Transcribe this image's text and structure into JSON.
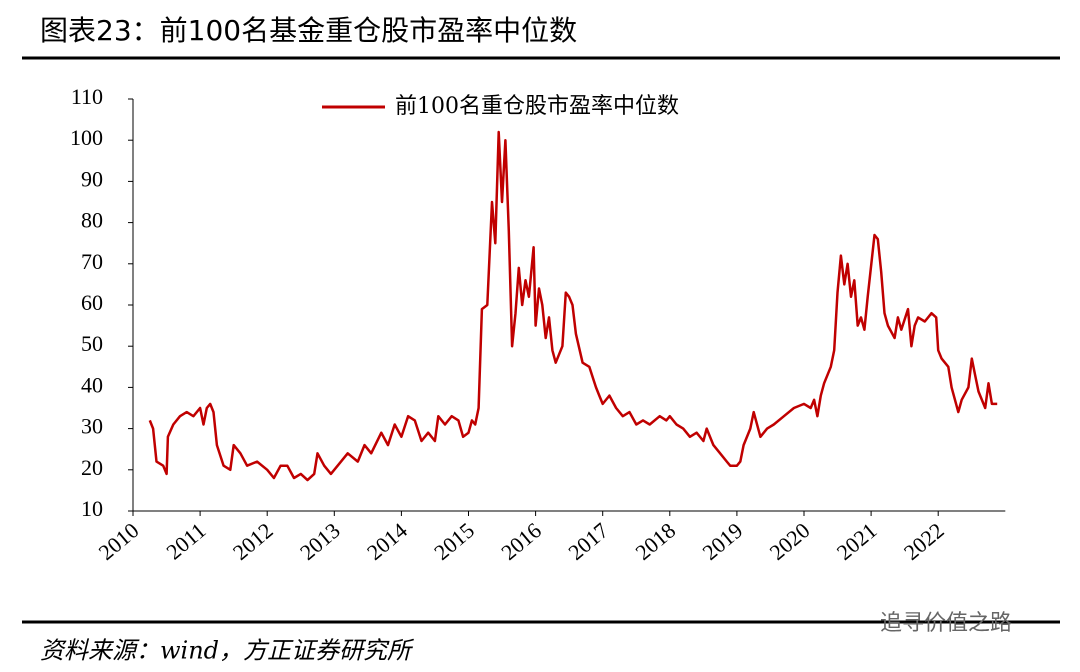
{
  "chart_data": {
    "type": "line",
    "title": "图表23：前100名基金重仓股市盈率中位数",
    "source": "资料来源：wind，方正证券研究所",
    "watermark": "追寻价值之路",
    "xlim": [
      2010,
      2023
    ],
    "xticks": [
      2010,
      2011,
      2012,
      2013,
      2014,
      2015,
      2016,
      2017,
      2018,
      2019,
      2020,
      2021,
      2022
    ],
    "ylim": [
      10,
      110
    ],
    "yticks": [
      10,
      20,
      30,
      40,
      50,
      60,
      70,
      80,
      90,
      100,
      110
    ],
    "grid": false,
    "legend": "top",
    "x": [
      2010.25,
      2010.3,
      2010.35,
      2010.45,
      2010.5,
      2010.52,
      2010.6,
      2010.7,
      2010.8,
      2010.9,
      2011.0,
      2011.05,
      2011.1,
      2011.15,
      2011.2,
      2011.25,
      2011.35,
      2011.45,
      2011.5,
      2011.6,
      2011.7,
      2011.85,
      2012.0,
      2012.1,
      2012.2,
      2012.3,
      2012.4,
      2012.5,
      2012.6,
      2012.7,
      2012.75,
      2012.85,
      2012.95,
      2013.1,
      2013.2,
      2013.35,
      2013.45,
      2013.55,
      2013.7,
      2013.8,
      2013.9,
      2014.0,
      2014.1,
      2014.2,
      2014.3,
      2014.4,
      2014.5,
      2014.55,
      2014.65,
      2014.75,
      2014.85,
      2014.92,
      2015.0,
      2015.05,
      2015.1,
      2015.15,
      2015.2,
      2015.28,
      2015.35,
      2015.4,
      2015.45,
      2015.5,
      2015.55,
      2015.6,
      2015.65,
      2015.7,
      2015.75,
      2015.8,
      2015.85,
      2015.9,
      2015.97,
      2016.0,
      2016.05,
      2016.1,
      2016.15,
      2016.2,
      2016.25,
      2016.3,
      2016.4,
      2016.45,
      2016.5,
      2016.55,
      2016.6,
      2016.7,
      2016.8,
      2016.9,
      2016.95,
      2017.0,
      2017.1,
      2017.2,
      2017.3,
      2017.4,
      2017.5,
      2017.6,
      2017.7,
      2017.85,
      2017.95,
      2018.0,
      2018.1,
      2018.2,
      2018.3,
      2018.4,
      2018.5,
      2018.55,
      2018.65,
      2018.75,
      2018.85,
      2018.9,
      2019.0,
      2019.05,
      2019.1,
      2019.2,
      2019.25,
      2019.35,
      2019.45,
      2019.55,
      2019.7,
      2019.85,
      2020.0,
      2020.1,
      2020.15,
      2020.2,
      2020.25,
      2020.3,
      2020.4,
      2020.45,
      2020.5,
      2020.55,
      2020.6,
      2020.65,
      2020.7,
      2020.75,
      2020.8,
      2020.85,
      2020.9,
      2020.95,
      2021.05,
      2021.1,
      2021.15,
      2021.2,
      2021.25,
      2021.35,
      2021.4,
      2021.45,
      2021.55,
      2021.6,
      2021.65,
      2021.7,
      2021.8,
      2021.9,
      2021.97,
      2022.0,
      2022.05,
      2022.15,
      2022.2,
      2022.3,
      2022.35,
      2022.45,
      2022.5,
      2022.55,
      2022.6,
      2022.7,
      2022.75,
      2022.8,
      2022.88
    ],
    "series": [
      {
        "name": "前100名重仓股市盈率中位数",
        "color": "#c00000",
        "values": [
          32,
          30,
          22,
          21,
          19,
          28,
          31,
          33,
          34,
          33,
          35,
          31,
          35,
          36,
          34,
          26,
          21,
          20,
          26,
          24,
          21,
          22,
          20,
          18,
          21,
          21,
          18,
          19,
          17.5,
          19,
          24,
          21,
          19,
          22,
          24,
          22,
          26,
          24,
          29,
          26,
          31,
          28,
          33,
          32,
          27,
          29,
          27,
          33,
          31,
          33,
          32,
          28,
          29,
          32,
          31,
          35,
          59,
          60,
          85,
          75,
          102,
          85,
          100,
          78,
          50,
          58,
          69,
          60,
          66,
          62,
          74,
          55,
          64,
          60,
          52,
          57,
          49,
          46,
          50,
          63,
          62,
          60,
          53,
          46,
          45,
          40,
          38,
          36,
          38,
          35,
          33,
          34,
          31,
          32,
          31,
          33,
          32,
          33,
          31,
          30,
          28,
          29,
          27,
          30,
          26,
          24,
          22,
          21,
          21,
          22,
          26,
          30,
          34,
          28,
          30,
          31,
          33,
          35,
          36,
          35,
          37,
          33,
          38,
          41,
          45,
          49,
          63,
          72,
          65,
          70,
          62,
          66,
          55,
          57,
          54,
          62,
          77,
          76,
          68,
          58,
          55,
          52,
          57,
          54,
          59,
          50,
          55,
          57,
          56,
          58,
          57,
          49,
          47,
          45,
          40,
          34,
          37,
          40,
          47,
          43,
          39,
          35,
          41,
          36,
          36
        ]
      }
    ]
  }
}
